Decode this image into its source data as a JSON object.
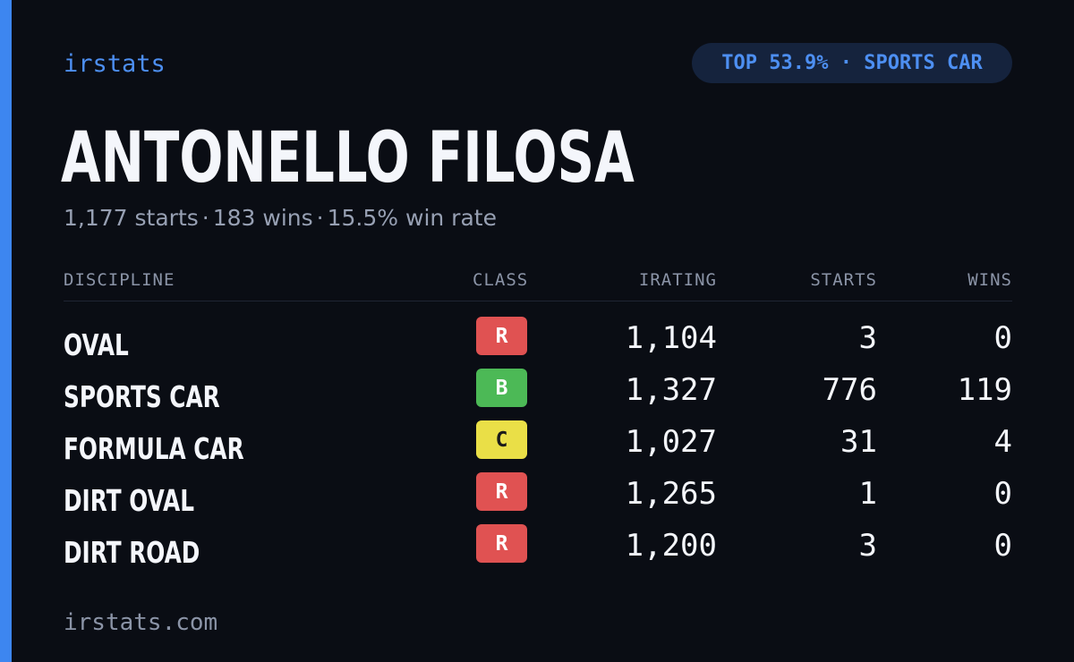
{
  "brand": "irstats",
  "badge": {
    "top_label": "TOP 53.9% · SPORTS CAR"
  },
  "driver": {
    "name": "ANTONELLO FILOSA"
  },
  "summary": {
    "starts": "1,177 starts",
    "wins": "183 wins",
    "win_rate": "15.5% win rate",
    "separator": "·"
  },
  "table": {
    "headers": {
      "discipline": "DISCIPLINE",
      "class": "CLASS",
      "irating": "IRATING",
      "starts": "STARTS",
      "wins": "WINS"
    },
    "rows": [
      {
        "discipline": "OVAL",
        "class": "R",
        "class_color": "#e05252",
        "class_text_color": "#ffffff",
        "irating": "1,104",
        "starts": "3",
        "wins": "0"
      },
      {
        "discipline": "SPORTS CAR",
        "class": "B",
        "class_color": "#4cb956",
        "class_text_color": "#ffffff",
        "irating": "1,327",
        "starts": "776",
        "wins": "119"
      },
      {
        "discipline": "FORMULA CAR",
        "class": "C",
        "class_color": "#eadf47",
        "class_text_color": "#1a1a1a",
        "irating": "1,027",
        "starts": "31",
        "wins": "4"
      },
      {
        "discipline": "DIRT OVAL",
        "class": "R",
        "class_color": "#e05252",
        "class_text_color": "#ffffff",
        "irating": "1,265",
        "starts": "1",
        "wins": "0"
      },
      {
        "discipline": "DIRT ROAD",
        "class": "R",
        "class_color": "#e05252",
        "class_text_color": "#ffffff",
        "irating": "1,200",
        "starts": "3",
        "wins": "0"
      }
    ]
  },
  "footer": {
    "site": "irstats.com"
  },
  "colors": {
    "accent": "#3d86f0",
    "background": "#0a0d14"
  }
}
